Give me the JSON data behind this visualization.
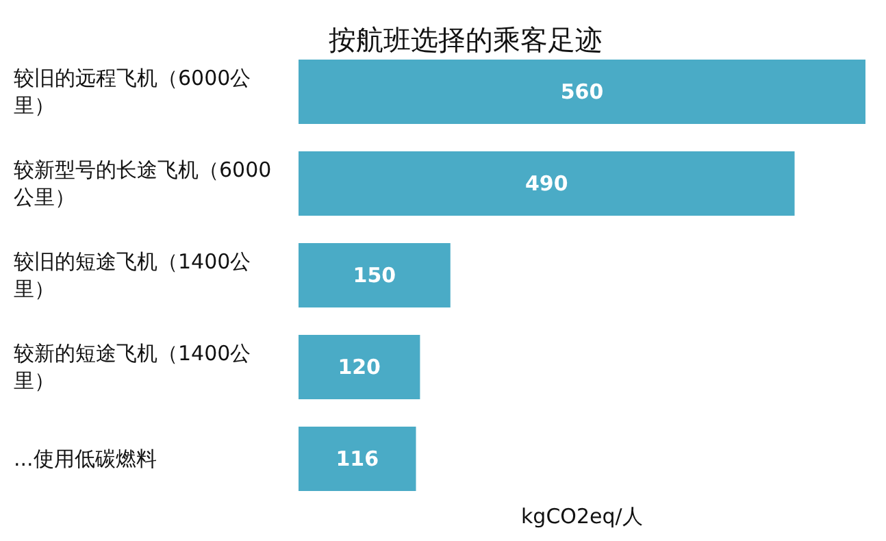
{
  "chart_data": {
    "type": "bar",
    "orientation": "horizontal",
    "title": "按航班选择的乘客足迹",
    "xlabel": "kgCO2eq/人",
    "categories": [
      "较旧的远程飞机（6000公里）",
      "较新型号的长途飞机（6000公里）",
      "较旧的短途飞机（1400公里）",
      "较新的短途飞机（1400公里）",
      "...使用低碳燃料"
    ],
    "values": [
      560,
      490,
      150,
      120,
      116
    ],
    "color": "#4aabc6",
    "data_labels": true
  }
}
